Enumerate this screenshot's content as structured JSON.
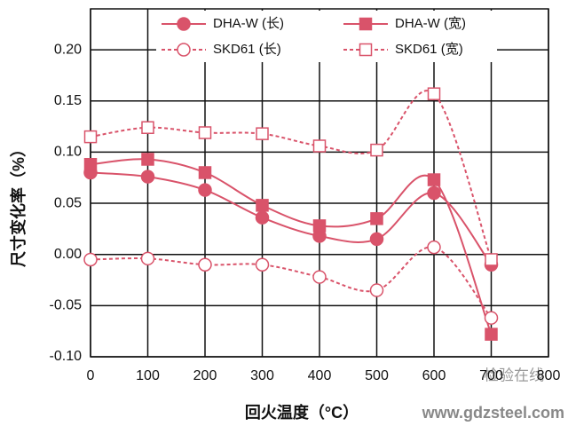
{
  "chart_data": {
    "type": "line",
    "xlabel": "回火温度（°C）",
    "ylabel": "尺寸变化率（%）",
    "x": [
      0,
      100,
      200,
      300,
      400,
      500,
      600,
      700
    ],
    "series": [
      {
        "name": "DHA-W (长)",
        "color": "#d9536a",
        "marker": "circle",
        "filled": true,
        "dashed": false,
        "values": [
          0.08,
          0.076,
          0.063,
          0.036,
          0.018,
          0.015,
          0.06,
          -0.01
        ]
      },
      {
        "name": "DHA-W (宽)",
        "color": "#d9536a",
        "marker": "square",
        "filled": true,
        "dashed": false,
        "values": [
          0.088,
          0.093,
          0.08,
          0.048,
          0.028,
          0.035,
          0.073,
          -0.078
        ]
      },
      {
        "name": "SKD61 (长)",
        "color": "#d9536a",
        "marker": "circle",
        "filled": false,
        "dashed": true,
        "values": [
          -0.005,
          -0.004,
          -0.01,
          -0.01,
          -0.022,
          -0.035,
          0.007,
          -0.062
        ]
      },
      {
        "name": "SKD61 (宽)",
        "color": "#d9536a",
        "marker": "square",
        "filled": false,
        "dashed": true,
        "values": [
          0.115,
          0.124,
          0.119,
          0.118,
          0.106,
          0.102,
          0.157,
          -0.005
        ]
      }
    ],
    "xlim": [
      0,
      800
    ],
    "xticks": [
      0,
      100,
      200,
      300,
      400,
      500,
      600,
      700,
      800
    ],
    "ylim": [
      -0.1,
      0.24
    ],
    "yticks": [
      {
        "value": -0.1,
        "label": "-0.10"
      },
      {
        "value": -0.05,
        "label": "-0.05"
      },
      {
        "value": 0,
        "label": "0.00"
      },
      {
        "value": 0.05,
        "label": "0.05"
      },
      {
        "value": 0.1,
        "label": "0.10"
      },
      {
        "value": 0.15,
        "label": "0.15"
      },
      {
        "value": 0.2,
        "label": "0.20"
      }
    ],
    "grid": true,
    "legend": "top",
    "watermark": [
      "检验在线",
      "www.gdzsteel.com"
    ]
  }
}
